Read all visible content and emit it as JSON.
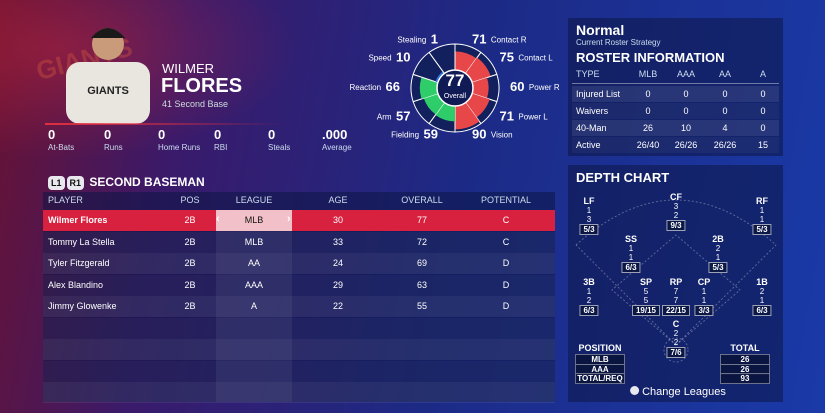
{
  "player": {
    "first_name": "WILMER",
    "last_name": "FLORES",
    "info": "41 Second Base",
    "stats": [
      {
        "value": 0,
        "label": "At-Bats"
      },
      {
        "value": 0,
        "label": "Runs"
      },
      {
        "value": 0,
        "label": "Home Runs"
      },
      {
        "value": 0,
        "label": "RBI"
      },
      {
        "value": 0,
        "label": "Steals"
      },
      {
        "value": ".000",
        "label": "Average"
      }
    ]
  },
  "ratings": {
    "overall": 77,
    "overall_label": "Overall",
    "attributes": [
      {
        "name": "Contact R",
        "value": 71
      },
      {
        "name": "Contact L",
        "value": 75
      },
      {
        "name": "Power R",
        "value": 60
      },
      {
        "name": "Power L",
        "value": 71
      },
      {
        "name": "Vision",
        "value": 90
      },
      {
        "name": "Fielding",
        "value": 59
      },
      {
        "name": "Arm",
        "value": 57
      },
      {
        "name": "Reaction",
        "value": 66
      },
      {
        "name": "Speed",
        "value": 10
      },
      {
        "name": "Stealing",
        "value": 1
      }
    ]
  },
  "roster_strategy": {
    "title": "Normal",
    "subtitle": "Current Roster Strategy"
  },
  "roster_info": {
    "title": "ROSTER INFORMATION",
    "columns": [
      "TYPE",
      "MLB",
      "AAA",
      "AA",
      "A"
    ],
    "rows": [
      [
        "Injured List",
        0,
        0,
        0,
        0
      ],
      [
        "Waivers",
        0,
        0,
        0,
        0
      ],
      [
        "40-Man",
        26,
        10,
        4,
        0
      ],
      [
        "Active",
        "26/40",
        "26/26",
        "26/26",
        15
      ]
    ]
  },
  "position_table": {
    "buttons": [
      "L1",
      "R1"
    ],
    "title": "SECOND BASEMAN",
    "columns": [
      "PLAYER",
      "POS",
      "LEAGUE",
      "AGE",
      "OVERALL",
      "POTENTIAL"
    ],
    "rows": [
      [
        "Wilmer Flores",
        "2B",
        "MLB",
        30,
        77,
        "C"
      ],
      [
        "Tommy La Stella",
        "2B",
        "MLB",
        33,
        72,
        "C"
      ],
      [
        "Tyler Fitzgerald",
        "2B",
        "AA",
        24,
        69,
        "D"
      ],
      [
        "Alex Blandino",
        "2B",
        "AAA",
        29,
        63,
        "D"
      ],
      [
        "Jimmy Glowenke",
        "2B",
        "A",
        22,
        55,
        "D"
      ]
    ]
  },
  "depth_chart": {
    "title": "DEPTH CHART",
    "positions": [
      {
        "name": "LF",
        "mlb": 1,
        "aaa": 3,
        "total_req": "5/3"
      },
      {
        "name": "CF",
        "mlb": 3,
        "aaa": 2,
        "total_req": "9/3"
      },
      {
        "name": "RF",
        "mlb": 1,
        "aaa": 1,
        "total_req": "5/3"
      },
      {
        "name": "SS",
        "mlb": 1,
        "aaa": 1,
        "total_req": "6/3"
      },
      {
        "name": "2B",
        "mlb": 2,
        "aaa": 1,
        "total_req": "5/3"
      },
      {
        "name": "3B",
        "mlb": 1,
        "aaa": 2,
        "total_req": "6/3"
      },
      {
        "name": "SP",
        "mlb": 5,
        "aaa": 5,
        "total_req": "19/15"
      },
      {
        "name": "RP",
        "mlb": 7,
        "aaa": 7,
        "total_req": "22/15"
      },
      {
        "name": "CP",
        "mlb": 1,
        "aaa": 1,
        "total_req": "3/3"
      },
      {
        "name": "1B",
        "mlb": 2,
        "aaa": 1,
        "total_req": "6/3"
      },
      {
        "name": "C",
        "mlb": 2,
        "aaa": 2,
        "total_req": "7/6"
      }
    ],
    "legend": {
      "title": "POSITION",
      "rows": [
        "MLB",
        "AAA",
        "TOTAL/REQ"
      ],
      "total_title": "TOTAL",
      "totals": [
        26,
        26,
        93
      ]
    },
    "button": "Change Leagues"
  }
}
